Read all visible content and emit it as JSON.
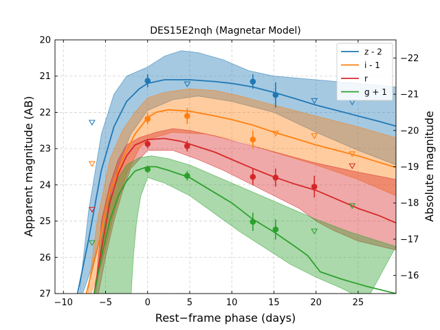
{
  "chart_data": {
    "type": "line",
    "title": "DES15E2nqh (Magnetar Model)",
    "xlabel": "Rest−frame phase (days)",
    "ylabel": "Apparent magnitude (AB)",
    "ylabel_right": "Absolute magnitude",
    "xlim": [
      -11,
      29.5
    ],
    "ylim": [
      27,
      20
    ],
    "ylim_right": [
      -15.5,
      -22.5
    ],
    "xticks": [
      -10,
      -5,
      0,
      5,
      10,
      15,
      20,
      25
    ],
    "xtick_labels": [
      "−10",
      "−5",
      "0",
      "5",
      "10",
      "15",
      "20",
      "25"
    ],
    "yticks": [
      20,
      21,
      22,
      23,
      24,
      25,
      26,
      27
    ],
    "ytick_labels": [
      "20",
      "21",
      "22",
      "23",
      "24",
      "25",
      "26",
      "27"
    ],
    "yticks_right": [
      -22,
      -21,
      -20,
      -19,
      -18,
      -17,
      -16
    ],
    "ytick_labels_right": [
      "−22",
      "−21",
      "−20",
      "−19",
      "−18",
      "−17",
      "−16"
    ],
    "grid": true,
    "legend_position": "top-right",
    "series": [
      {
        "name": "z - 2",
        "color": "#1f77b4",
        "model": [
          [
            -8.5,
            27.2
          ],
          [
            -7,
            25.5
          ],
          [
            -5.5,
            23.6
          ],
          [
            -4,
            22.4
          ],
          [
            -2.5,
            21.7
          ],
          [
            -1,
            21.35
          ],
          [
            0,
            21.2
          ],
          [
            2,
            21.1
          ],
          [
            5,
            21.1
          ],
          [
            8,
            21.15
          ],
          [
            10,
            21.2
          ],
          [
            12.5,
            21.3
          ],
          [
            15,
            21.45
          ],
          [
            17.5,
            21.62
          ],
          [
            20,
            21.8
          ],
          [
            22.5,
            21.95
          ],
          [
            25,
            22.1
          ],
          [
            27.5,
            22.25
          ],
          [
            29.5,
            22.38
          ]
        ],
        "band_upper": [
          [
            -8.2,
            27.2
          ],
          [
            -7,
            24.7
          ],
          [
            -5.5,
            22.6
          ],
          [
            -4,
            21.5
          ],
          [
            -2.5,
            21.0
          ],
          [
            0,
            20.75
          ],
          [
            2,
            20.45
          ],
          [
            4,
            20.3
          ],
          [
            6,
            20.35
          ],
          [
            9,
            20.55
          ],
          [
            12,
            20.85
          ],
          [
            15,
            21.0
          ],
          [
            20,
            21.1
          ],
          [
            25,
            21.2
          ],
          [
            29.5,
            21.3
          ]
        ],
        "band_lower": [
          [
            -8.0,
            27.2
          ],
          [
            -6.5,
            26.2
          ],
          [
            -5,
            24.8
          ],
          [
            -3.5,
            23.5
          ],
          [
            -2,
            22.6
          ],
          [
            0,
            21.95
          ],
          [
            3,
            21.65
          ],
          [
            6,
            21.55
          ],
          [
            10,
            21.7
          ],
          [
            15,
            22.0
          ],
          [
            20,
            22.55
          ],
          [
            25,
            23.05
          ],
          [
            29.5,
            23.45
          ]
        ],
        "detections": [
          {
            "x": 0,
            "y": 21.13,
            "err": 0.18
          },
          {
            "x": 12.5,
            "y": 21.15,
            "err": 0.2
          },
          {
            "x": 15.2,
            "y": 21.52,
            "err": 0.35
          }
        ],
        "upper_limits": [
          {
            "x": -6.6,
            "y": 22.28
          },
          {
            "x": 4.7,
            "y": 21.22
          },
          {
            "x": 19.8,
            "y": 21.68
          },
          {
            "x": 24.3,
            "y": 21.72
          }
        ]
      },
      {
        "name": "i - 1",
        "color": "#ff7f0e",
        "model": [
          [
            -7.5,
            27.2
          ],
          [
            -6,
            25.8
          ],
          [
            -4.5,
            24.2
          ],
          [
            -3,
            23.3
          ],
          [
            -1.5,
            22.6
          ],
          [
            0,
            22.15
          ],
          [
            1,
            22.0
          ],
          [
            2.5,
            21.93
          ],
          [
            5,
            21.97
          ],
          [
            8,
            22.1
          ],
          [
            10,
            22.2
          ],
          [
            12.5,
            22.35
          ],
          [
            15,
            22.55
          ],
          [
            17.5,
            22.72
          ],
          [
            20,
            22.9
          ],
          [
            22.5,
            23.05
          ],
          [
            25,
            23.2
          ],
          [
            27.5,
            23.38
          ],
          [
            29.5,
            23.52
          ]
        ],
        "band_upper": [
          [
            -7.2,
            27.2
          ],
          [
            -6,
            25.0
          ],
          [
            -4.5,
            23.3
          ],
          [
            -3,
            22.5
          ],
          [
            -1.5,
            22.0
          ],
          [
            0,
            21.6
          ],
          [
            2,
            21.45
          ],
          [
            5,
            21.35
          ],
          [
            8,
            21.4
          ],
          [
            11,
            21.55
          ],
          [
            15,
            21.8
          ],
          [
            20,
            22.1
          ],
          [
            25,
            22.4
          ],
          [
            29.5,
            22.7
          ]
        ],
        "band_lower": [
          [
            -7.0,
            27.2
          ],
          [
            -5.5,
            26.2
          ],
          [
            -4,
            24.8
          ],
          [
            -2.5,
            23.7
          ],
          [
            -1,
            23.0
          ],
          [
            0,
            22.75
          ],
          [
            3,
            22.55
          ],
          [
            7,
            22.6
          ],
          [
            11,
            22.8
          ],
          [
            15,
            23.1
          ],
          [
            20,
            23.45
          ],
          [
            25,
            23.85
          ],
          [
            29.5,
            24.3
          ]
        ],
        "detections": [
          {
            "x": 0,
            "y": 22.18,
            "err": 0.15
          },
          {
            "x": 4.7,
            "y": 22.1,
            "err": 0.22
          },
          {
            "x": 12.5,
            "y": 22.75,
            "err": 0.25
          }
        ],
        "upper_limits": [
          {
            "x": -6.6,
            "y": 23.42
          },
          {
            "x": 15.2,
            "y": 22.58
          },
          {
            "x": 19.8,
            "y": 22.65
          },
          {
            "x": 24.3,
            "y": 23.15
          }
        ]
      },
      {
        "name": "r",
        "color": "#d62728",
        "model": [
          [
            -6.5,
            27.2
          ],
          [
            -5.5,
            25.8
          ],
          [
            -4.5,
            24.5
          ],
          [
            -3.5,
            23.7
          ],
          [
            -2.5,
            23.2
          ],
          [
            -1.5,
            22.9
          ],
          [
            0,
            22.75
          ],
          [
            2,
            22.72
          ],
          [
            4,
            22.8
          ],
          [
            6,
            22.95
          ],
          [
            8,
            23.1
          ],
          [
            10,
            23.3
          ],
          [
            12.5,
            23.55
          ],
          [
            15,
            23.78
          ],
          [
            17.5,
            23.98
          ],
          [
            20,
            24.15
          ],
          [
            22.5,
            24.4
          ],
          [
            25,
            24.65
          ],
          [
            27.5,
            24.85
          ],
          [
            29.5,
            25.05
          ]
        ],
        "band_upper": [
          [
            -6.3,
            27.2
          ],
          [
            -5.5,
            25.0
          ],
          [
            -4.5,
            24.0
          ],
          [
            -3.5,
            23.3
          ],
          [
            -2.5,
            22.9
          ],
          [
            -1,
            22.7
          ],
          [
            1,
            22.55
          ],
          [
            3,
            22.45
          ],
          [
            5,
            22.5
          ],
          [
            8,
            22.65
          ],
          [
            12,
            22.9
          ],
          [
            16,
            23.15
          ],
          [
            20,
            23.4
          ],
          [
            25,
            23.65
          ],
          [
            29.5,
            23.85
          ]
        ],
        "band_lower": [
          [
            -6.0,
            27.2
          ],
          [
            -5,
            26.0
          ],
          [
            -4,
            25.0
          ],
          [
            -3,
            24.2
          ],
          [
            -2,
            23.55
          ],
          [
            0,
            23.05
          ],
          [
            3,
            23.05
          ],
          [
            6,
            23.3
          ],
          [
            9,
            23.6
          ],
          [
            12,
            23.95
          ],
          [
            15,
            24.3
          ],
          [
            18,
            24.65
          ],
          [
            20,
            25.0
          ],
          [
            22,
            25.25
          ],
          [
            25,
            25.55
          ],
          [
            29.5,
            25.8
          ]
        ],
        "detections": [
          {
            "x": 0,
            "y": 22.87,
            "err": 0.12
          },
          {
            "x": 4.7,
            "y": 22.93,
            "err": 0.15
          },
          {
            "x": 12.5,
            "y": 23.78,
            "err": 0.22
          },
          {
            "x": 15.2,
            "y": 23.8,
            "err": 0.25
          },
          {
            "x": 19.8,
            "y": 24.05,
            "err": 0.3
          }
        ],
        "upper_limits": [
          {
            "x": -6.6,
            "y": 24.68
          },
          {
            "x": 24.3,
            "y": 23.48
          }
        ]
      },
      {
        "name": "g + 1",
        "color": "#2ca02c",
        "model": [
          [
            -6.5,
            27.2
          ],
          [
            -5.5,
            26.0
          ],
          [
            -4.5,
            25.0
          ],
          [
            -3.5,
            24.3
          ],
          [
            -2.5,
            23.9
          ],
          [
            -1.5,
            23.62
          ],
          [
            0,
            23.5
          ],
          [
            1,
            23.5
          ],
          [
            2.5,
            23.6
          ],
          [
            5,
            23.8
          ],
          [
            7.5,
            24.15
          ],
          [
            10,
            24.5
          ],
          [
            12.5,
            24.95
          ],
          [
            15,
            25.3
          ],
          [
            17.5,
            25.7
          ],
          [
            19,
            25.95
          ],
          [
            20.5,
            26.4
          ],
          [
            23,
            26.6
          ],
          [
            26,
            26.8
          ],
          [
            29.5,
            27.0
          ]
        ],
        "band_upper": [
          [
            -6.2,
            27.2
          ],
          [
            -5.5,
            25.5
          ],
          [
            -4.5,
            24.4
          ],
          [
            -3.5,
            23.8
          ],
          [
            -2.5,
            23.45
          ],
          [
            -1,
            23.25
          ],
          [
            0.5,
            23.2
          ],
          [
            2.5,
            23.28
          ],
          [
            5,
            23.45
          ],
          [
            8,
            23.75
          ],
          [
            12,
            24.15
          ],
          [
            16,
            24.55
          ],
          [
            20,
            24.95
          ],
          [
            24,
            25.3
          ],
          [
            29.5,
            25.7
          ]
        ],
        "band_lower": [
          [
            -2.0,
            27.2
          ],
          [
            -1.7,
            26.0
          ],
          [
            -1.3,
            25.0
          ],
          [
            -0.8,
            24.3
          ],
          [
            0,
            23.8
          ],
          [
            2,
            23.95
          ],
          [
            5,
            24.3
          ],
          [
            8,
            24.8
          ],
          [
            11,
            25.3
          ],
          [
            14,
            25.75
          ],
          [
            17,
            26.2
          ],
          [
            20,
            26.55
          ],
          [
            23,
            26.85
          ],
          [
            26,
            27.2
          ]
        ],
        "detections": [
          {
            "x": 0,
            "y": 23.57,
            "err": 0.1
          },
          {
            "x": 4.7,
            "y": 23.75,
            "err": 0.13
          },
          {
            "x": 12.5,
            "y": 25.02,
            "err": 0.25
          },
          {
            "x": 15.2,
            "y": 25.23,
            "err": 0.28
          }
        ],
        "upper_limits": [
          {
            "x": -6.6,
            "y": 25.6
          },
          {
            "x": 19.8,
            "y": 25.28
          },
          {
            "x": 24.3,
            "y": 24.58
          }
        ]
      }
    ]
  }
}
